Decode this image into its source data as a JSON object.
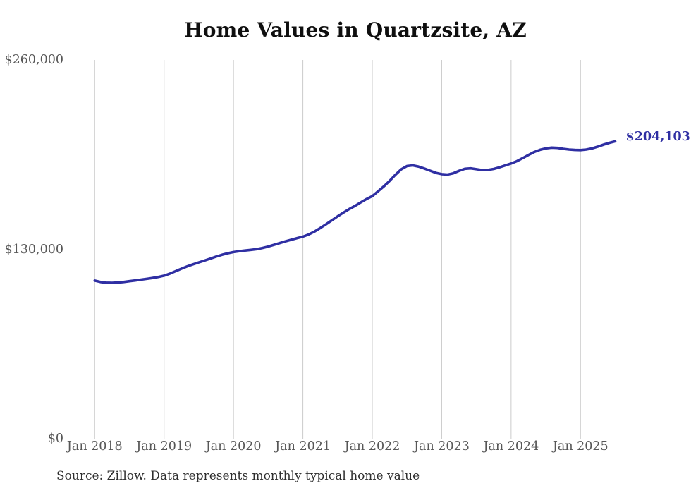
{
  "title": "Home Values in Quartzsite, AZ",
  "source_note": "Source: Zillow. Data represents monthly typical home value",
  "end_label": "$204,103",
  "colors": {
    "line": "#2f2fa3",
    "grid": "#cbcbcb",
    "axis_text": "#575757",
    "title_text": "#0f0f0f",
    "source_text": "#2e2e2e",
    "background": "#ffffff"
  },
  "chart_data": {
    "type": "line",
    "title": "Home Values in Quartzsite, AZ",
    "series_name": "Monthly typical home value",
    "legend": "none",
    "grid": "vertical-only",
    "ylim": [
      0,
      260000
    ],
    "yticks": [
      {
        "value": 0,
        "label": "$0"
      },
      {
        "value": 130000,
        "label": "$130,000"
      },
      {
        "value": 260000,
        "label": "$260,000"
      }
    ],
    "xticks": [
      {
        "month": "2018-01",
        "label": "Jan 2018"
      },
      {
        "month": "2019-01",
        "label": "Jan 2019"
      },
      {
        "month": "2020-01",
        "label": "Jan 2020"
      },
      {
        "month": "2021-01",
        "label": "Jan 2021"
      },
      {
        "month": "2022-01",
        "label": "Jan 2022"
      },
      {
        "month": "2023-01",
        "label": "Jan 2023"
      },
      {
        "month": "2024-01",
        "label": "Jan 2024"
      },
      {
        "month": "2025-01",
        "label": "Jan 2025"
      }
    ],
    "last_point_label": "$204,103",
    "x": [
      "2018-01",
      "2018-02",
      "2018-03",
      "2018-04",
      "2018-05",
      "2018-06",
      "2018-07",
      "2018-08",
      "2018-09",
      "2018-10",
      "2018-11",
      "2018-12",
      "2019-01",
      "2019-02",
      "2019-03",
      "2019-04",
      "2019-05",
      "2019-06",
      "2019-07",
      "2019-08",
      "2019-09",
      "2019-10",
      "2019-11",
      "2019-12",
      "2020-01",
      "2020-02",
      "2020-03",
      "2020-04",
      "2020-05",
      "2020-06",
      "2020-07",
      "2020-08",
      "2020-09",
      "2020-10",
      "2020-11",
      "2020-12",
      "2021-01",
      "2021-02",
      "2021-03",
      "2021-04",
      "2021-05",
      "2021-06",
      "2021-07",
      "2021-08",
      "2021-09",
      "2021-10",
      "2021-11",
      "2021-12",
      "2022-01",
      "2022-02",
      "2022-03",
      "2022-04",
      "2022-05",
      "2022-06",
      "2022-07",
      "2022-08",
      "2022-09",
      "2022-10",
      "2022-11",
      "2022-12",
      "2023-01",
      "2023-02",
      "2023-03",
      "2023-04",
      "2023-05",
      "2023-06",
      "2023-07",
      "2023-08",
      "2023-09",
      "2023-10",
      "2023-11",
      "2023-12",
      "2024-01",
      "2024-02",
      "2024-03",
      "2024-04",
      "2024-05",
      "2024-06",
      "2024-07",
      "2024-08",
      "2024-09",
      "2024-10",
      "2024-11",
      "2024-12",
      "2025-01",
      "2025-02",
      "2025-03",
      "2025-04",
      "2025-05",
      "2025-06",
      "2025-07"
    ],
    "values": [
      108500,
      107600,
      107100,
      107000,
      107200,
      107600,
      108100,
      108600,
      109200,
      109700,
      110300,
      111000,
      111900,
      113300,
      115000,
      116700,
      118300,
      119700,
      121000,
      122300,
      123600,
      125000,
      126200,
      127300,
      128100,
      128700,
      129200,
      129600,
      130100,
      130900,
      131900,
      133100,
      134300,
      135500,
      136600,
      137700,
      138700,
      140200,
      142200,
      144600,
      147200,
      149900,
      152600,
      155200,
      157600,
      159800,
      162200,
      164500,
      166500,
      169800,
      173200,
      177000,
      181200,
      184900,
      187200,
      187600,
      186800,
      185500,
      184000,
      182500,
      181600,
      181300,
      182200,
      183900,
      185300,
      185600,
      185000,
      184400,
      184500,
      185200,
      186300,
      187600,
      188900,
      190500,
      192600,
      194800,
      196800,
      198300,
      199300,
      199800,
      199600,
      199000,
      198500,
      198200,
      198100,
      198500,
      199300,
      200500,
      201900,
      203100,
      204103
    ]
  }
}
